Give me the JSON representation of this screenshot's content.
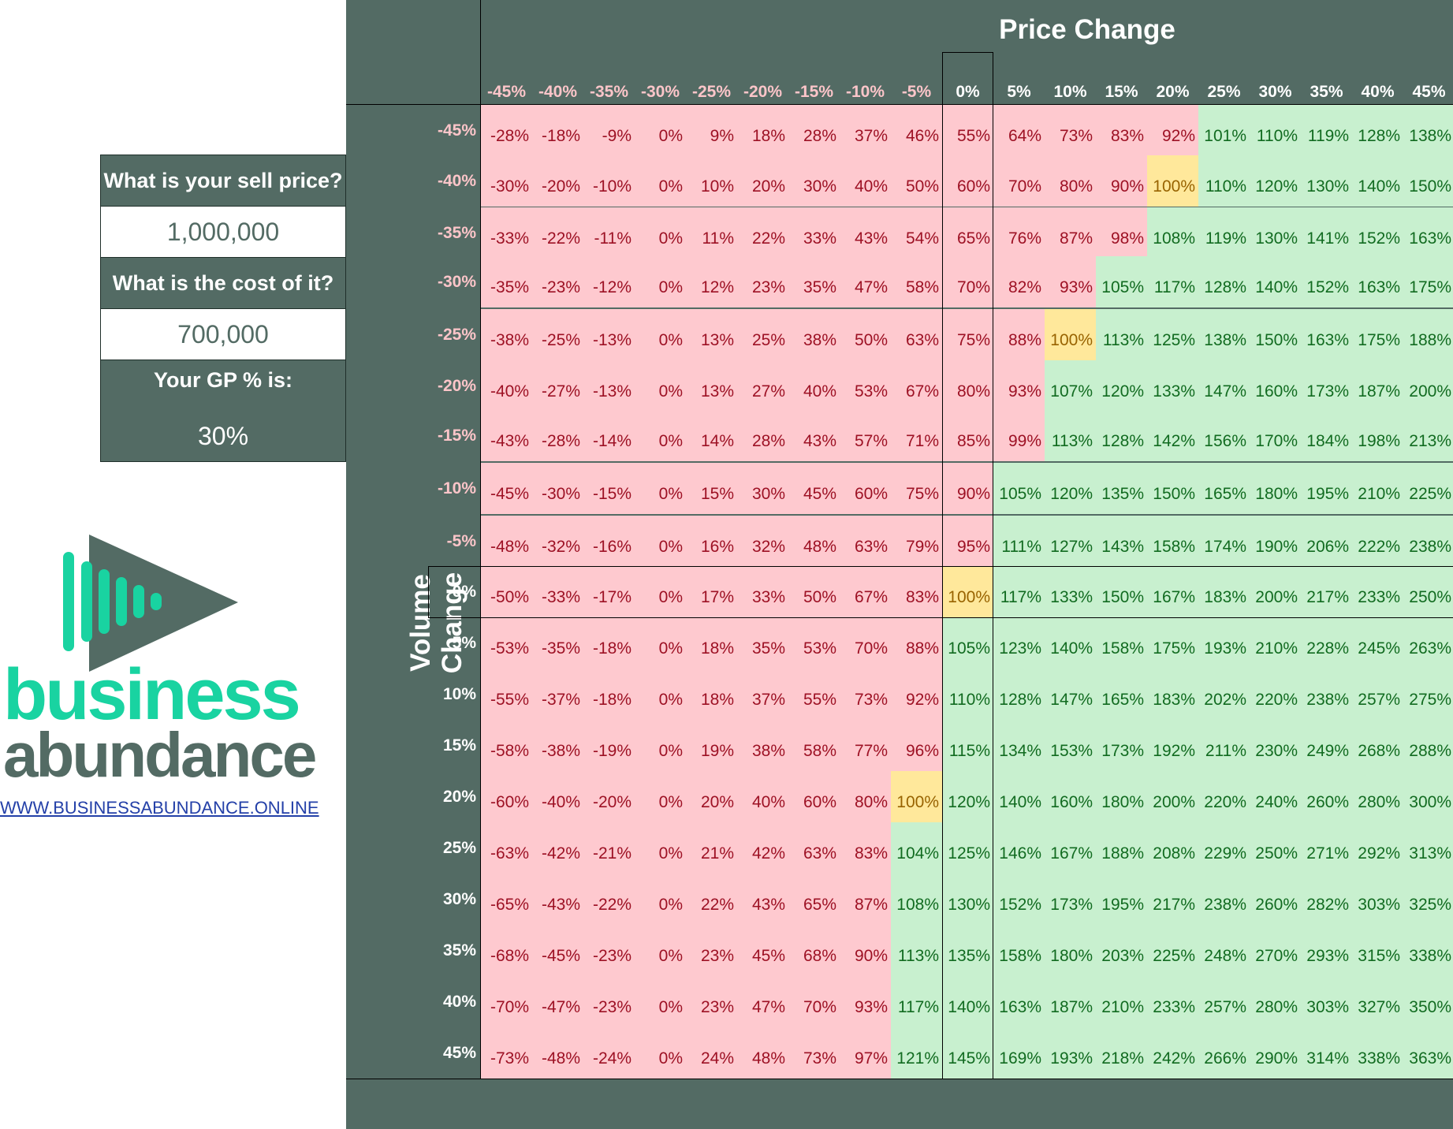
{
  "inputs": {
    "sell_price_label": "What is your sell price?",
    "sell_price_value": "1,000,000",
    "cost_label": "What is the cost of it?",
    "cost_value": "700,000",
    "gp_label": "Your GP % is:",
    "gp_value": "30%"
  },
  "brand": {
    "name_line1": "business",
    "name_line2": "abundance",
    "website": "WWW.BUSINESSABUNDANCE.ONLINE",
    "logo_icon": "play-soundwave-icon"
  },
  "matrix": {
    "title_price": "Price Change",
    "title_volume": "Volume Change",
    "price_changes": [
      "-45%",
      "-40%",
      "-35%",
      "-30%",
      "-25%",
      "-20%",
      "-15%",
      "-10%",
      "-5%",
      "0%",
      "5%",
      "10%",
      "15%",
      "20%",
      "25%",
      "30%",
      "35%",
      "40%",
      "45%"
    ],
    "volume_changes": [
      "-45%",
      "-40%",
      "-35%",
      "-30%",
      "-25%",
      "-20%",
      "-15%",
      "-10%",
      "-5%",
      "0%",
      "5%",
      "10%",
      "15%",
      "20%",
      "25%",
      "30%",
      "35%",
      "40%",
      "45%"
    ],
    "values": [
      [
        "-28%",
        "-18%",
        "-9%",
        "0%",
        "9%",
        "18%",
        "28%",
        "37%",
        "46%",
        "55%",
        "64%",
        "73%",
        "83%",
        "92%",
        "101%",
        "110%",
        "119%",
        "128%",
        "138%"
      ],
      [
        "-30%",
        "-20%",
        "-10%",
        "0%",
        "10%",
        "20%",
        "30%",
        "40%",
        "50%",
        "60%",
        "70%",
        "80%",
        "90%",
        "100%",
        "110%",
        "120%",
        "130%",
        "140%",
        "150%"
      ],
      [
        "-33%",
        "-22%",
        "-11%",
        "0%",
        "11%",
        "22%",
        "33%",
        "43%",
        "54%",
        "65%",
        "76%",
        "87%",
        "98%",
        "108%",
        "119%",
        "130%",
        "141%",
        "152%",
        "163%"
      ],
      [
        "-35%",
        "-23%",
        "-12%",
        "0%",
        "12%",
        "23%",
        "35%",
        "47%",
        "58%",
        "70%",
        "82%",
        "93%",
        "105%",
        "117%",
        "128%",
        "140%",
        "152%",
        "163%",
        "175%"
      ],
      [
        "-38%",
        "-25%",
        "-13%",
        "0%",
        "13%",
        "25%",
        "38%",
        "50%",
        "63%",
        "75%",
        "88%",
        "100%",
        "113%",
        "125%",
        "138%",
        "150%",
        "163%",
        "175%",
        "188%"
      ],
      [
        "-40%",
        "-27%",
        "-13%",
        "0%",
        "13%",
        "27%",
        "40%",
        "53%",
        "67%",
        "80%",
        "93%",
        "107%",
        "120%",
        "133%",
        "147%",
        "160%",
        "173%",
        "187%",
        "200%"
      ],
      [
        "-43%",
        "-28%",
        "-14%",
        "0%",
        "14%",
        "28%",
        "43%",
        "57%",
        "71%",
        "85%",
        "99%",
        "113%",
        "128%",
        "142%",
        "156%",
        "170%",
        "184%",
        "198%",
        "213%"
      ],
      [
        "-45%",
        "-30%",
        "-15%",
        "0%",
        "15%",
        "30%",
        "45%",
        "60%",
        "75%",
        "90%",
        "105%",
        "120%",
        "135%",
        "150%",
        "165%",
        "180%",
        "195%",
        "210%",
        "225%"
      ],
      [
        "-48%",
        "-32%",
        "-16%",
        "0%",
        "16%",
        "32%",
        "48%",
        "63%",
        "79%",
        "95%",
        "111%",
        "127%",
        "143%",
        "158%",
        "174%",
        "190%",
        "206%",
        "222%",
        "238%"
      ],
      [
        "-50%",
        "-33%",
        "-17%",
        "0%",
        "17%",
        "33%",
        "50%",
        "67%",
        "83%",
        "100%",
        "117%",
        "133%",
        "150%",
        "167%",
        "183%",
        "200%",
        "217%",
        "233%",
        "250%"
      ],
      [
        "-53%",
        "-35%",
        "-18%",
        "0%",
        "18%",
        "35%",
        "53%",
        "70%",
        "88%",
        "105%",
        "123%",
        "140%",
        "158%",
        "175%",
        "193%",
        "210%",
        "228%",
        "245%",
        "263%"
      ],
      [
        "-55%",
        "-37%",
        "-18%",
        "0%",
        "18%",
        "37%",
        "55%",
        "73%",
        "92%",
        "110%",
        "128%",
        "147%",
        "165%",
        "183%",
        "202%",
        "220%",
        "238%",
        "257%",
        "275%"
      ],
      [
        "-58%",
        "-38%",
        "-19%",
        "0%",
        "19%",
        "38%",
        "58%",
        "77%",
        "96%",
        "115%",
        "134%",
        "153%",
        "173%",
        "192%",
        "211%",
        "230%",
        "249%",
        "268%",
        "288%"
      ],
      [
        "-60%",
        "-40%",
        "-20%",
        "0%",
        "20%",
        "40%",
        "60%",
        "80%",
        "100%",
        "120%",
        "140%",
        "160%",
        "180%",
        "200%",
        "220%",
        "240%",
        "260%",
        "280%",
        "300%"
      ],
      [
        "-63%",
        "-42%",
        "-21%",
        "0%",
        "21%",
        "42%",
        "63%",
        "83%",
        "104%",
        "125%",
        "146%",
        "167%",
        "188%",
        "208%",
        "229%",
        "250%",
        "271%",
        "292%",
        "313%"
      ],
      [
        "-65%",
        "-43%",
        "-22%",
        "0%",
        "22%",
        "43%",
        "65%",
        "87%",
        "108%",
        "130%",
        "152%",
        "173%",
        "195%",
        "217%",
        "238%",
        "260%",
        "282%",
        "303%",
        "325%"
      ],
      [
        "-68%",
        "-45%",
        "-23%",
        "0%",
        "23%",
        "45%",
        "68%",
        "90%",
        "113%",
        "135%",
        "158%",
        "180%",
        "203%",
        "225%",
        "248%",
        "270%",
        "293%",
        "315%",
        "338%"
      ],
      [
        "-70%",
        "-47%",
        "-23%",
        "0%",
        "23%",
        "47%",
        "70%",
        "93%",
        "117%",
        "140%",
        "163%",
        "187%",
        "210%",
        "233%",
        "257%",
        "280%",
        "303%",
        "327%",
        "350%"
      ],
      [
        "-73%",
        "-48%",
        "-24%",
        "0%",
        "24%",
        "48%",
        "73%",
        "97%",
        "121%",
        "145%",
        "169%",
        "193%",
        "218%",
        "242%",
        "266%",
        "290%",
        "314%",
        "338%",
        "363%"
      ]
    ],
    "colors": {
      "panel_bg": "#536b64",
      "positive_bg": "#c8f0cf",
      "positive_text": "#116b20",
      "negative_bg": "#fec9cf",
      "negative_text": "#9d1124",
      "breakeven_bg": "#ffe89b",
      "breakeven_text": "#986300",
      "neg_header_text": "#fcc5c9",
      "brand_green": "#19d3a1"
    }
  }
}
